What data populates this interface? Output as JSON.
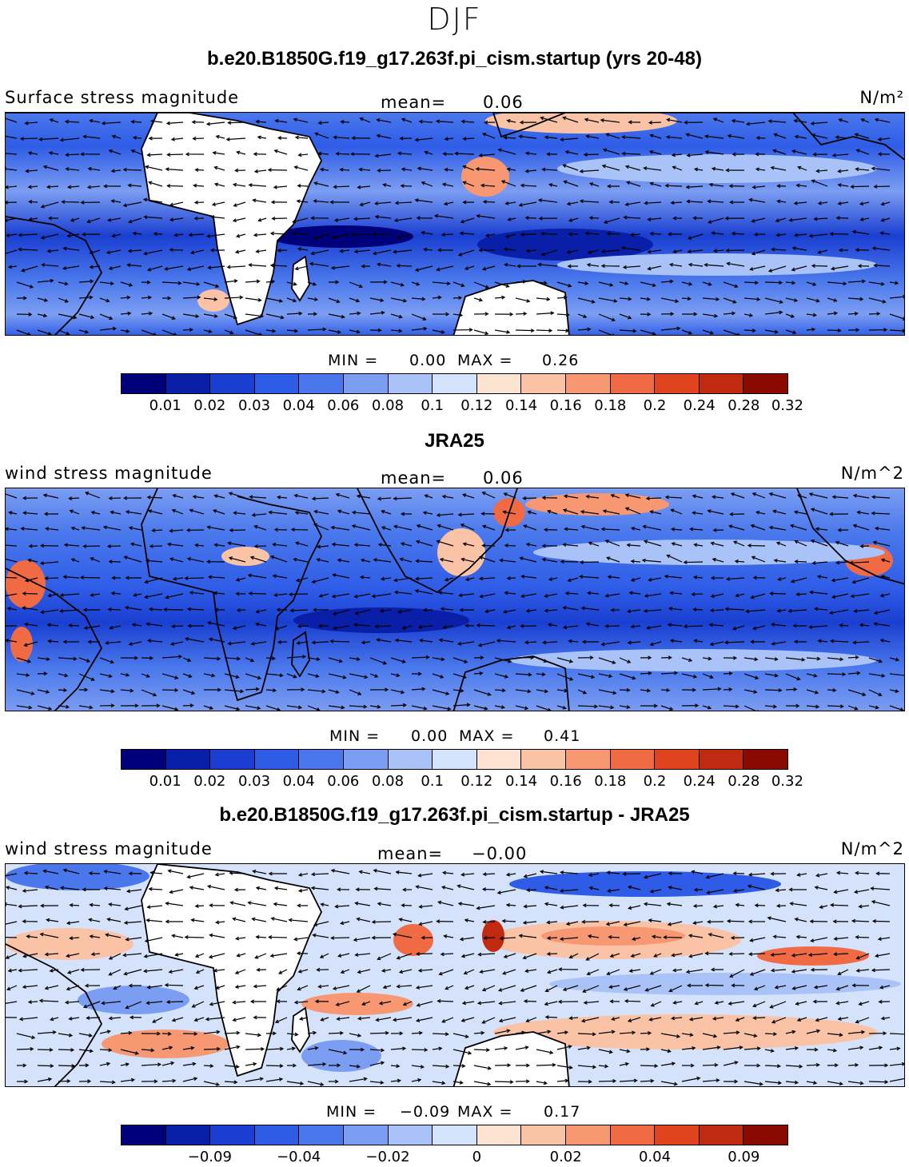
{
  "figure": {
    "season": "DJF"
  },
  "panels": [
    {
      "title": "b.e20.B1850G.f19_g17.263f.pi_cism.startup (yrs 20-48)",
      "variable": "Surface stress magnitude",
      "mean_label": "mean=",
      "mean_value": "0.06",
      "units": "N/m²",
      "min_label": "MIN =",
      "min_value": "0.00",
      "max_label": "MAX =",
      "max_value": "0.26",
      "colorbar_ticks": [
        "0.01",
        "0.02",
        "0.03",
        "0.04",
        "0.06",
        "0.08",
        "0.1",
        "0.12",
        "0.14",
        "0.16",
        "0.18",
        "0.2",
        "0.24",
        "0.28",
        "0.32"
      ]
    },
    {
      "title": "JRA25",
      "variable": "wind stress magnitude",
      "mean_label": "mean=",
      "mean_value": "0.06",
      "units": "N/m^2",
      "min_label": "MIN =",
      "min_value": "0.00",
      "max_label": "MAX =",
      "max_value": "0.41",
      "colorbar_ticks": [
        "0.01",
        "0.02",
        "0.03",
        "0.04",
        "0.06",
        "0.08",
        "0.1",
        "0.12",
        "0.14",
        "0.16",
        "0.18",
        "0.2",
        "0.24",
        "0.28",
        "0.32"
      ]
    },
    {
      "title": "b.e20.B1850G.f19_g17.263f.pi_cism.startup - JRA25",
      "variable": "wind stress magnitude",
      "mean_label": "mean=",
      "mean_value": "−0.00",
      "units": "N/m^2",
      "min_label": "MIN =",
      "min_value": "−0.09",
      "max_label": "MAX =",
      "max_value": "0.17",
      "colorbar_ticks": [
        "−0.09",
        "−0.04",
        "−0.02",
        "0",
        "0.02",
        "0.04",
        "0.09"
      ]
    }
  ],
  "colormap": [
    "#00007a",
    "#0a1fa8",
    "#1a3fd0",
    "#2e5ce6",
    "#4a78ec",
    "#7c9ef2",
    "#a9c2f8",
    "#d4e2fb",
    "#fde4d2",
    "#fbc3a6",
    "#f79872",
    "#f06a44",
    "#e0441e",
    "#c02a10",
    "#8a0a02"
  ],
  "land_color": "#ffffff",
  "coast_color": "#000000"
}
